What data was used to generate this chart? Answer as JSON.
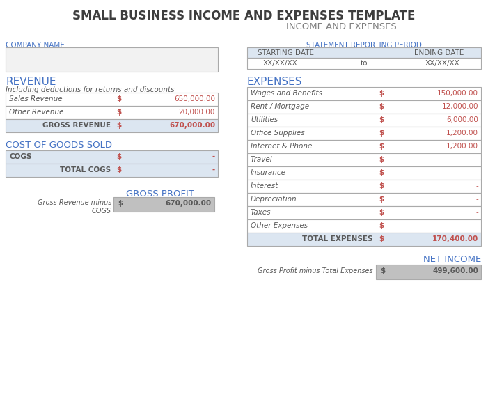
{
  "title": "SMALL BUSINESS INCOME AND EXPENSES TEMPLATE",
  "subtitle": "INCOME AND EXPENSES",
  "title_color": "#3d3d3d",
  "subtitle_color": "#7f7f7f",
  "label_color": "#4472c4",
  "value_color": "#c0504d",
  "text_color": "#595959",
  "bg_color": "#ffffff",
  "header_bg": "#dce6f1",
  "total_bg": "#dce6f1",
  "gross_profit_bg": "#c0c0c0",
  "border_color": "#aaaaaa",
  "section_headers": {
    "company_name": "COMPANY NAME",
    "statement": "STATEMENT REPORTING PERIOD",
    "revenue": "REVENUE",
    "expenses": "EXPENSES",
    "cogs": "COST OF GOODS SOLD",
    "gross_profit": "GROSS PROFIT",
    "net_income": "NET INCOME"
  },
  "revenue_subtitle": "Including deductions for returns and discounts",
  "revenue_rows": [
    [
      "Sales Revenue",
      "$",
      "650,000.00"
    ],
    [
      "Other Revenue",
      "$",
      "20,000.00"
    ]
  ],
  "revenue_total": [
    "GROSS REVENUE",
    "$",
    "670,000.00"
  ],
  "cogs_rows": [
    [
      "COGS",
      "$",
      "-"
    ]
  ],
  "cogs_total": [
    "TOTAL COGS",
    "$",
    "-"
  ],
  "gross_profit_label": "Gross Revenue minus\nCOGS",
  "gross_profit_value": [
    "$",
    "670,000.00"
  ],
  "expenses_rows": [
    [
      "Wages and Benefits",
      "$",
      "150,000.00"
    ],
    [
      "Rent / Mortgage",
      "$",
      "12,000.00"
    ],
    [
      "Utilities",
      "$",
      "6,000.00"
    ],
    [
      "Office Supplies",
      "$",
      "1,200.00"
    ],
    [
      "Internet & Phone",
      "$",
      "1,200.00"
    ],
    [
      "Travel",
      "$",
      "-"
    ],
    [
      "Insurance",
      "$",
      "-"
    ],
    [
      "Interest",
      "$",
      "-"
    ],
    [
      "Depreciation",
      "$",
      "-"
    ],
    [
      "Taxes",
      "$",
      "-"
    ],
    [
      "Other Expenses",
      "$",
      "-"
    ]
  ],
  "expenses_total": [
    "TOTAL EXPENSES",
    "$",
    "170,400.00"
  ],
  "net_income_label": "Gross Profit minus Total Expenses",
  "net_income_value": [
    "$",
    "499,600.00"
  ],
  "date_headers": [
    "STARTING DATE",
    "ENDING DATE"
  ],
  "date_values": [
    "XX/XX/XX",
    "to",
    "XX/XX/XX"
  ]
}
